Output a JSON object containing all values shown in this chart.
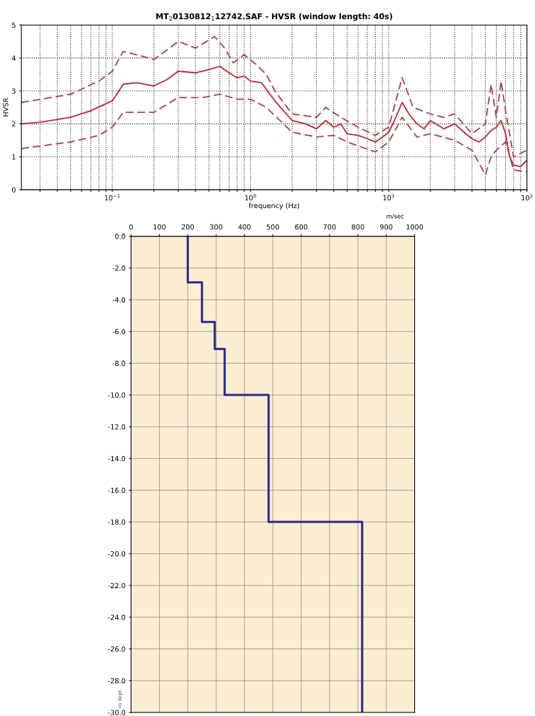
{
  "chart_data": [
    {
      "type": "line",
      "title": "MT$_{2}$0130812$_{1}$12742.SAF - HVSR (window length: 40s)",
      "xlabel": "frequency (Hz)",
      "ylabel": "HVSR",
      "log": "x",
      "grid": true,
      "xlim": [
        0.022,
        100
      ],
      "ylim": [
        0,
        5
      ],
      "yticks": [
        0,
        1,
        2,
        3,
        4,
        5
      ],
      "xticks": [
        {
          "value": 0.03,
          "label": null
        },
        {
          "value": 0.04,
          "label": null
        },
        {
          "value": 0.05,
          "label": null
        },
        {
          "value": 0.06,
          "label": null
        },
        {
          "value": 0.07,
          "label": null
        },
        {
          "value": 0.08,
          "label": null
        },
        {
          "value": 0.09,
          "label": null
        },
        {
          "value": 0.1,
          "label": "10$^{−1}$"
        },
        {
          "value": 0.2,
          "label": null
        },
        {
          "value": 0.3,
          "label": null
        },
        {
          "value": 0.4,
          "label": null
        },
        {
          "value": 0.5,
          "label": null
        },
        {
          "value": 0.6,
          "label": null
        },
        {
          "value": 0.7,
          "label": null
        },
        {
          "value": 0.8,
          "label": null
        },
        {
          "value": 0.9,
          "label": null
        },
        {
          "value": 1,
          "label": "10$^{0}$"
        },
        {
          "value": 2,
          "label": null
        },
        {
          "value": 3,
          "label": null
        },
        {
          "value": 4,
          "label": null
        },
        {
          "value": 5,
          "label": null
        },
        {
          "value": 6,
          "label": null
        },
        {
          "value": 7,
          "label": null
        },
        {
          "value": 8,
          "label": null
        },
        {
          "value": 9,
          "label": null
        },
        {
          "value": 10,
          "label": "10$^{1}$"
        },
        {
          "value": 20,
          "label": null
        },
        {
          "value": 30,
          "label": null
        },
        {
          "value": 40,
          "label": null
        },
        {
          "value": 50,
          "label": null
        },
        {
          "value": 60,
          "label": null
        },
        {
          "value": 70,
          "label": null
        },
        {
          "value": 80,
          "label": null
        },
        {
          "value": 90,
          "label": null
        },
        {
          "value": 100,
          "label": "10$^{2}$"
        }
      ],
      "series": [
        {
          "color": "#c0282d",
          "line_style": "solid",
          "x": [
            0.022,
            0.03,
            0.05,
            0.07,
            0.1,
            0.12,
            0.15,
            0.2,
            0.25,
            0.3,
            0.4,
            0.5,
            0.6,
            0.7,
            0.8,
            0.9,
            1.0,
            1.2,
            1.5,
            2,
            2.5,
            3,
            3.5,
            4,
            4.5,
            5,
            6,
            7,
            8,
            9,
            10,
            11,
            12.5,
            14,
            16,
            18,
            20,
            25,
            30,
            35,
            40,
            45,
            50,
            55,
            60,
            65,
            70,
            75,
            80,
            90,
            100
          ],
          "values": [
            2.0,
            2.05,
            2.2,
            2.4,
            2.7,
            3.2,
            3.25,
            3.15,
            3.35,
            3.6,
            3.55,
            3.65,
            3.75,
            3.55,
            3.4,
            3.45,
            3.3,
            3.25,
            2.7,
            2.1,
            2.0,
            1.85,
            2.1,
            1.9,
            2.0,
            1.7,
            1.65,
            1.55,
            1.45,
            1.6,
            1.75,
            2.1,
            2.65,
            2.3,
            2.0,
            1.85,
            2.1,
            1.85,
            2.0,
            1.75,
            1.55,
            1.45,
            1.6,
            1.8,
            1.9,
            2.1,
            1.7,
            1.0,
            0.75,
            0.7,
            0.9
          ]
        },
        {
          "color": "#a8404a",
          "line_style": "dashed",
          "x": [
            0.022,
            0.05,
            0.08,
            0.1,
            0.12,
            0.15,
            0.2,
            0.3,
            0.4,
            0.55,
            0.65,
            0.75,
            0.9,
            1.1,
            1.3,
            1.5,
            2,
            3,
            3.5,
            4.5,
            6,
            8,
            10,
            12.5,
            15,
            20,
            25,
            30,
            40,
            50,
            55,
            60,
            65,
            70,
            80,
            100
          ],
          "values": [
            2.65,
            2.9,
            3.3,
            3.6,
            4.2,
            4.1,
            3.95,
            4.5,
            4.3,
            4.65,
            4.3,
            3.85,
            4.1,
            3.8,
            3.5,
            3.0,
            2.3,
            2.2,
            2.5,
            2.2,
            1.9,
            1.65,
            1.9,
            3.4,
            2.5,
            2.3,
            2.2,
            2.3,
            1.7,
            2.0,
            3.2,
            2.2,
            3.3,
            2.4,
            1.0,
            1.2
          ]
        },
        {
          "color": "#a8404a",
          "line_style": "dashed",
          "x": [
            0.022,
            0.05,
            0.08,
            0.1,
            0.12,
            0.2,
            0.3,
            0.45,
            0.6,
            0.8,
            1.0,
            1.3,
            2,
            3,
            4,
            5,
            8,
            10,
            12.5,
            16,
            20,
            30,
            40,
            50,
            55,
            60,
            70,
            80,
            100
          ],
          "values": [
            1.25,
            1.45,
            1.65,
            1.9,
            2.35,
            2.35,
            2.8,
            2.8,
            2.9,
            2.75,
            2.75,
            2.5,
            1.75,
            1.6,
            1.65,
            1.45,
            1.15,
            1.45,
            2.2,
            1.6,
            1.7,
            1.5,
            1.2,
            0.45,
            1.0,
            1.2,
            1.45,
            0.6,
            0.55
          ]
        }
      ]
    },
    {
      "type": "line",
      "xlabel": "m/sec",
      "ylabel": "m dept.",
      "grid": true,
      "xlim": [
        0,
        1000
      ],
      "xticks": [
        0,
        100,
        200,
        300,
        400,
        500,
        600,
        700,
        800,
        900,
        1000
      ],
      "ylim": [
        -30,
        0
      ],
      "yticks": [
        {
          "value": 0,
          "label": "0.0"
        },
        {
          "value": -2,
          "label": "-2.0"
        },
        {
          "value": -4,
          "label": "-4.0"
        },
        {
          "value": -6,
          "label": "-6.0"
        },
        {
          "value": -8,
          "label": "-8.0"
        },
        {
          "value": -10,
          "label": "-10.0"
        },
        {
          "value": -12,
          "label": "-12.0"
        },
        {
          "value": -14,
          "label": "-14.0"
        },
        {
          "value": -16,
          "label": "-16.0"
        },
        {
          "value": -18,
          "label": "-18.0"
        },
        {
          "value": -20,
          "label": "-20.0"
        },
        {
          "value": -22,
          "label": "-22.0"
        },
        {
          "value": -24,
          "label": "-24.0"
        },
        {
          "value": -26,
          "label": "-26.0"
        },
        {
          "value": -28,
          "label": "-28.0"
        },
        {
          "value": -30,
          "label": "-30.0"
        }
      ],
      "series": [
        {
          "color": "#2a2a8a",
          "x": [
            200,
            200,
            250,
            250,
            295,
            295,
            330,
            330,
            485,
            485,
            815,
            815
          ],
          "values": [
            0,
            -2.9,
            -2.9,
            -5.4,
            -5.4,
            -7.1,
            -7.1,
            -10,
            -10,
            -18,
            -18,
            -30
          ]
        }
      ]
    }
  ]
}
